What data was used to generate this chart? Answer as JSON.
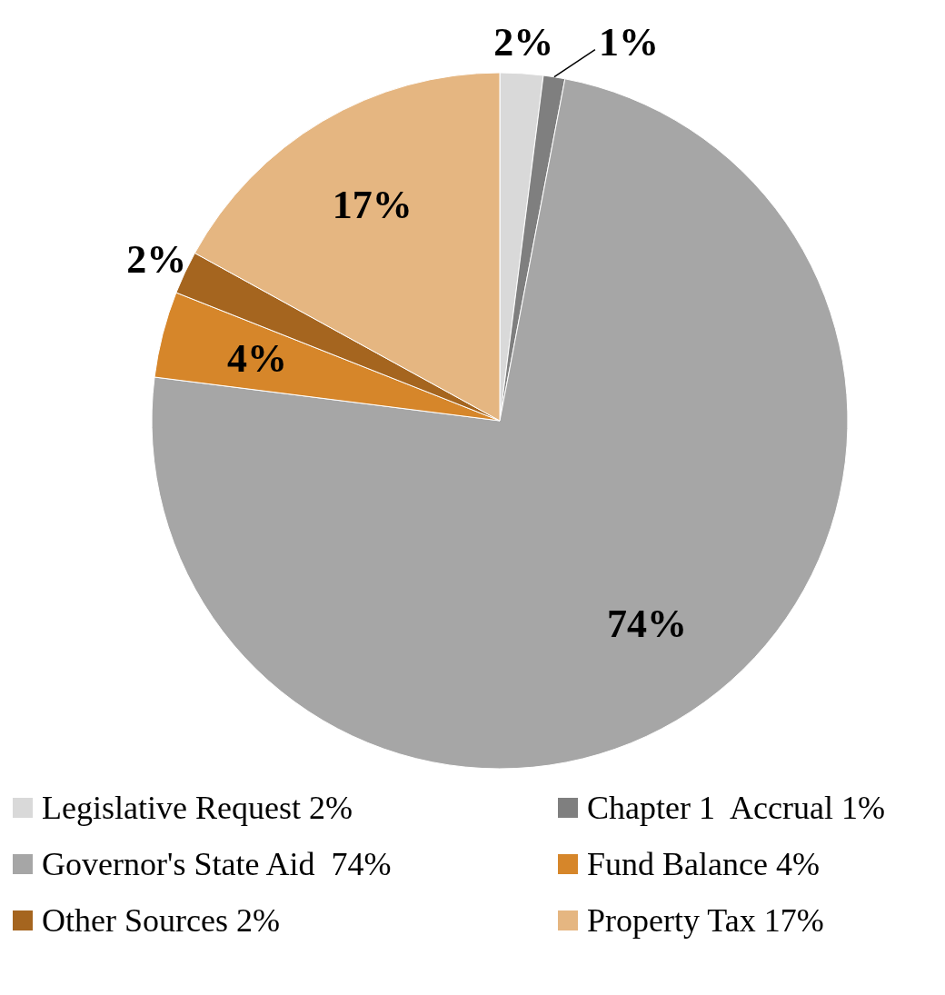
{
  "chart_data": {
    "type": "pie",
    "categories": [
      "Legislative Request 2%",
      "Chapter 1  Accrual 1%",
      "Governor's State Aid  74%",
      "Fund Balance 4%",
      "Other Sources 2%",
      "Property Tax 17%"
    ],
    "values": [
      2,
      1,
      74,
      4,
      2,
      17
    ],
    "colors": [
      "#d9d9d9",
      "#7f7f7f",
      "#a6a6a6",
      "#d6862a",
      "#a5651f",
      "#e5b681"
    ],
    "value_labels": [
      "2%",
      "1%",
      "74%",
      "4%",
      "2%",
      "17%"
    ],
    "legend": "bottom"
  }
}
